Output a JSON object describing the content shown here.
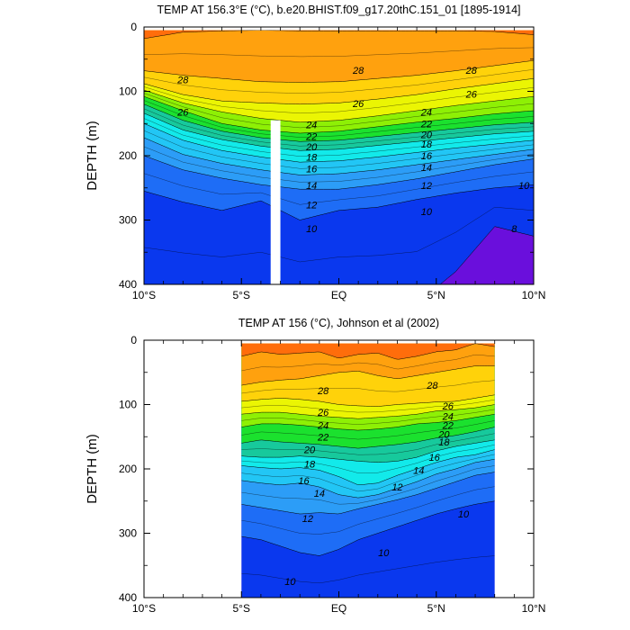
{
  "colors": {
    "levels": [
      8,
      10,
      12,
      14,
      16,
      18,
      20,
      22,
      24,
      26,
      28,
      30
    ],
    "fills": [
      "#6a0fdc",
      "#0a38ee",
      "#1e6df6",
      "#2c9df7",
      "#22c6f5",
      "#12eaea",
      "#17c99c",
      "#1be12e",
      "#8ef005",
      "#ebf503",
      "#ffd20a",
      "#ffa10e",
      "#ff6d0b",
      "#ff3a0a",
      "#e31108"
    ]
  },
  "chart_data": [
    {
      "type": "contour",
      "title": "TEMP AT 156.3°E (°C), b.e20.BHIST.f09_g17.20thC.151_01 [1895-1914]",
      "xlabel": "",
      "ylabel": "DEPTH (m)",
      "xlim": [
        -10,
        10
      ],
      "ylim": [
        400,
        0
      ],
      "x_ticks": [
        "10°S",
        "5°S",
        "EQ",
        "5°N",
        "10°N"
      ],
      "y_ticks": [
        "0",
        "100",
        "200",
        "300",
        "400"
      ],
      "data_extent": [
        -10,
        10
      ],
      "data_top": 5,
      "missing_column": [
        -3.5,
        -3.0
      ],
      "isotherm_depths": {
        "x": [
          -10,
          -8,
          -6,
          -4,
          -2,
          0,
          2,
          4,
          6,
          8,
          10
        ],
        "levels": {
          "30": [
            18,
            8,
            6,
            5,
            6,
            6,
            6,
            6,
            6,
            7,
            12
          ],
          "28": [
            68,
            75,
            80,
            85,
            86,
            85,
            80,
            75,
            68,
            60,
            52
          ],
          "26": [
            88,
            105,
            115,
            118,
            120,
            118,
            112,
            105,
            96,
            88,
            80
          ],
          "24": [
            98,
            118,
            132,
            142,
            148,
            145,
            138,
            130,
            122,
            115,
            108
          ],
          "22": [
            108,
            130,
            150,
            160,
            165,
            162,
            155,
            148,
            142,
            135,
            130
          ],
          "20": [
            120,
            145,
            162,
            172,
            178,
            176,
            170,
            164,
            158,
            152,
            148
          ],
          "18": [
            134,
            160,
            175,
            185,
            192,
            190,
            184,
            178,
            172,
            166,
            162
          ],
          "16": [
            150,
            176,
            192,
            202,
            210,
            208,
            202,
            195,
            188,
            182,
            176
          ],
          "14": [
            172,
            198,
            212,
            222,
            230,
            228,
            222,
            214,
            206,
            198,
            190
          ],
          "12": [
            200,
            222,
            235,
            245,
            252,
            252,
            245,
            236,
            225,
            214,
            205
          ],
          "10": [
            255,
            272,
            285,
            270,
            300,
            285,
            280,
            268,
            258,
            250,
            245
          ],
          "8": [
            430,
            430,
            430,
            430,
            430,
            430,
            430,
            430,
            380,
            310,
            325
          ]
        }
      },
      "contour_labels": [
        {
          "text": "28",
          "x": -8.0,
          "y": 82
        },
        {
          "text": "28",
          "x": 1.0,
          "y": 67
        },
        {
          "text": "28",
          "x": 6.8,
          "y": 67
        },
        {
          "text": "26",
          "x": -8.0,
          "y": 132
        },
        {
          "text": "26",
          "x": 1.0,
          "y": 119
        },
        {
          "text": "26",
          "x": 6.8,
          "y": 104
        },
        {
          "text": "24",
          "x": -1.4,
          "y": 152
        },
        {
          "text": "24",
          "x": 4.5,
          "y": 132
        },
        {
          "text": "22",
          "x": -1.4,
          "y": 170
        },
        {
          "text": "22",
          "x": 4.5,
          "y": 150
        },
        {
          "text": "20",
          "x": -1.4,
          "y": 186
        },
        {
          "text": "20",
          "x": 4.5,
          "y": 167
        },
        {
          "text": "18",
          "x": -1.4,
          "y": 202
        },
        {
          "text": "18",
          "x": 4.5,
          "y": 182
        },
        {
          "text": "16",
          "x": -1.4,
          "y": 220
        },
        {
          "text": "16",
          "x": 4.5,
          "y": 200
        },
        {
          "text": "14",
          "x": -1.4,
          "y": 246
        },
        {
          "text": "14",
          "x": 4.5,
          "y": 218
        },
        {
          "text": "12",
          "x": -1.4,
          "y": 276
        },
        {
          "text": "12",
          "x": 4.5,
          "y": 246
        },
        {
          "text": "10",
          "x": -1.4,
          "y": 313
        },
        {
          "text": "10",
          "x": 4.5,
          "y": 287
        },
        {
          "text": "10",
          "x": 9.5,
          "y": 246
        },
        {
          "text": "8",
          "x": 9.0,
          "y": 313
        }
      ]
    },
    {
      "type": "contour",
      "title": "TEMP AT 156 (°C), Johnson et al (2002)",
      "xlabel": "",
      "ylabel": "DEPTH (m)",
      "xlim": [
        -10,
        10
      ],
      "ylim": [
        400,
        0
      ],
      "x_ticks": [
        "10°S",
        "5°S",
        "EQ",
        "5°N",
        "10°N"
      ],
      "y_ticks": [
        "0",
        "100",
        "200",
        "300",
        "400"
      ],
      "data_extent": [
        -5,
        8
      ],
      "data_top": 5,
      "isotherm_depths": {
        "x": [
          -5,
          -4,
          -3,
          -2,
          -1,
          0,
          1,
          2,
          3,
          4,
          5,
          6,
          7,
          8
        ],
        "levels": {
          "30": [
            25,
            18,
            22,
            20,
            18,
            28,
            22,
            20,
            30,
            25,
            18,
            15,
            5,
            10
          ],
          "28": [
            70,
            65,
            62,
            60,
            55,
            50,
            48,
            55,
            60,
            55,
            50,
            45,
            40,
            40
          ],
          "26": [
            95,
            92,
            90,
            92,
            95,
            100,
            102,
            103,
            100,
            98,
            96,
            95,
            90,
            85
          ],
          "24": [
            115,
            112,
            112,
            115,
            118,
            120,
            122,
            120,
            118,
            115,
            110,
            108,
            105,
            100
          ],
          "22": [
            135,
            130,
            130,
            132,
            135,
            138,
            140,
            138,
            135,
            130,
            128,
            125,
            120,
            115
          ],
          "20": [
            160,
            155,
            158,
            160,
            162,
            165,
            168,
            165,
            162,
            158,
            152,
            148,
            142,
            135
          ],
          "18": [
            180,
            182,
            182,
            180,
            182,
            185,
            188,
            190,
            188,
            182,
            172,
            165,
            160,
            155
          ],
          "16": [
            195,
            198,
            200,
            198,
            202,
            212,
            225,
            222,
            210,
            200,
            190,
            182,
            178,
            170
          ],
          "14": [
            218,
            222,
            225,
            222,
            228,
            240,
            245,
            240,
            230,
            220,
            208,
            200,
            190,
            185
          ],
          "12": [
            255,
            260,
            265,
            270,
            268,
            270,
            262,
            255,
            248,
            240,
            230,
            220,
            210,
            205
          ],
          "10": [
            305,
            310,
            320,
            330,
            335,
            325,
            310,
            300,
            290,
            280,
            270,
            262,
            255,
            250
          ],
          "8": [
            420,
            420,
            420,
            420,
            420,
            420,
            420,
            420,
            420,
            420,
            420,
            420,
            420,
            420
          ]
        }
      },
      "contour_labels": [
        {
          "text": "28",
          "x": -0.8,
          "y": 78
        },
        {
          "text": "28",
          "x": 4.8,
          "y": 70
        },
        {
          "text": "26",
          "x": -0.8,
          "y": 112
        },
        {
          "text": "26",
          "x": 5.6,
          "y": 102
        },
        {
          "text": "24",
          "x": -0.8,
          "y": 132
        },
        {
          "text": "24",
          "x": 5.6,
          "y": 118
        },
        {
          "text": "22",
          "x": -0.8,
          "y": 150
        },
        {
          "text": "22",
          "x": 5.6,
          "y": 132
        },
        {
          "text": "20",
          "x": -1.5,
          "y": 170
        },
        {
          "text": "20",
          "x": 5.4,
          "y": 146
        },
        {
          "text": "18",
          "x": -1.5,
          "y": 192
        },
        {
          "text": "18",
          "x": 5.4,
          "y": 158
        },
        {
          "text": "16",
          "x": -1.8,
          "y": 218
        },
        {
          "text": "16",
          "x": 4.9,
          "y": 182
        },
        {
          "text": "14",
          "x": -1.0,
          "y": 238
        },
        {
          "text": "14",
          "x": 4.1,
          "y": 202
        },
        {
          "text": "12",
          "x": -1.6,
          "y": 277
        },
        {
          "text": "12",
          "x": 3.0,
          "y": 228
        },
        {
          "text": "10",
          "x": 2.3,
          "y": 330
        },
        {
          "text": "10",
          "x": 6.4,
          "y": 270
        },
        {
          "text": "10",
          "x": -2.5,
          "y": 375
        }
      ]
    }
  ]
}
